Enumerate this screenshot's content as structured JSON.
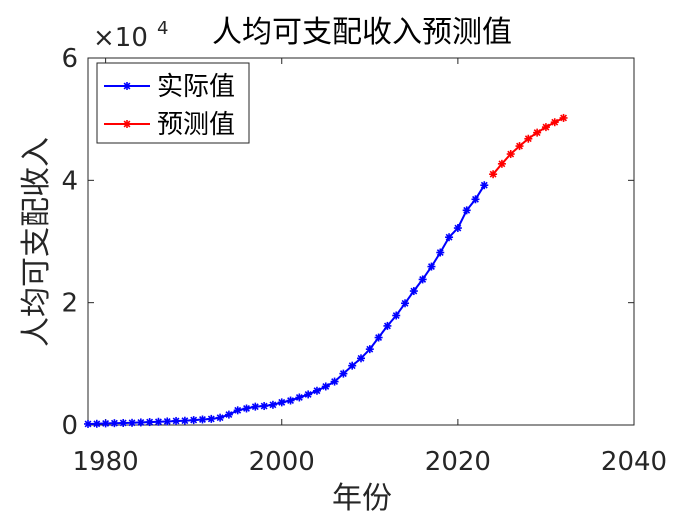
{
  "chart_data": {
    "type": "line",
    "title": "人均可支配收入预测值",
    "xlabel": "年份",
    "ylabel": "人均可支配收入",
    "y_exponent_base": "×10",
    "y_exponent_power": "4",
    "xlim": [
      1978,
      2040
    ],
    "ylim": [
      0,
      60000
    ],
    "x_ticks": [
      1980,
      2000,
      2020,
      2040
    ],
    "x_tick_labels": [
      "1980",
      "2000",
      "2020",
      "2040"
    ],
    "y_ticks": [
      0,
      20000,
      40000,
      60000
    ],
    "y_tick_labels": [
      "0",
      "2",
      "4",
      "6"
    ],
    "grid": false,
    "legend_position": "top-left",
    "colors": {
      "actual": "#0000ff",
      "forecast": "#ff0000",
      "axis": "#262626"
    },
    "series": [
      {
        "name": "实际值",
        "color": "#0000ff",
        "x": [
          1978,
          1979,
          1980,
          1981,
          1982,
          1983,
          1984,
          1985,
          1986,
          1987,
          1988,
          1989,
          1990,
          1991,
          1992,
          1993,
          1994,
          1995,
          1996,
          1997,
          1998,
          1999,
          2000,
          2001,
          2002,
          2003,
          2004,
          2005,
          2006,
          2007,
          2008,
          2009,
          2010,
          2011,
          2012,
          2013,
          2014,
          2015,
          2016,
          2017,
          2018,
          2019,
          2020,
          2021,
          2022,
          2023
        ],
        "y": [
          171,
          200,
          260,
          300,
          330,
          360,
          420,
          480,
          530,
          580,
          660,
          700,
          800,
          900,
          1000,
          1200,
          1700,
          2400,
          2700,
          3000,
          3100,
          3300,
          3700,
          4000,
          4500,
          5000,
          5600,
          6300,
          7100,
          8400,
          9700,
          10900,
          12400,
          14300,
          16200,
          17900,
          19900,
          21900,
          23800,
          25900,
          28200,
          30700,
          32200,
          35100,
          36900,
          39200
        ]
      },
      {
        "name": "预测值",
        "color": "#ff0000",
        "x": [
          2024,
          2025,
          2026,
          2027,
          2028,
          2029,
          2030,
          2031,
          2032
        ],
        "y": [
          41000,
          42700,
          44300,
          45600,
          46800,
          47800,
          48700,
          49500,
          50200
        ]
      }
    ]
  }
}
